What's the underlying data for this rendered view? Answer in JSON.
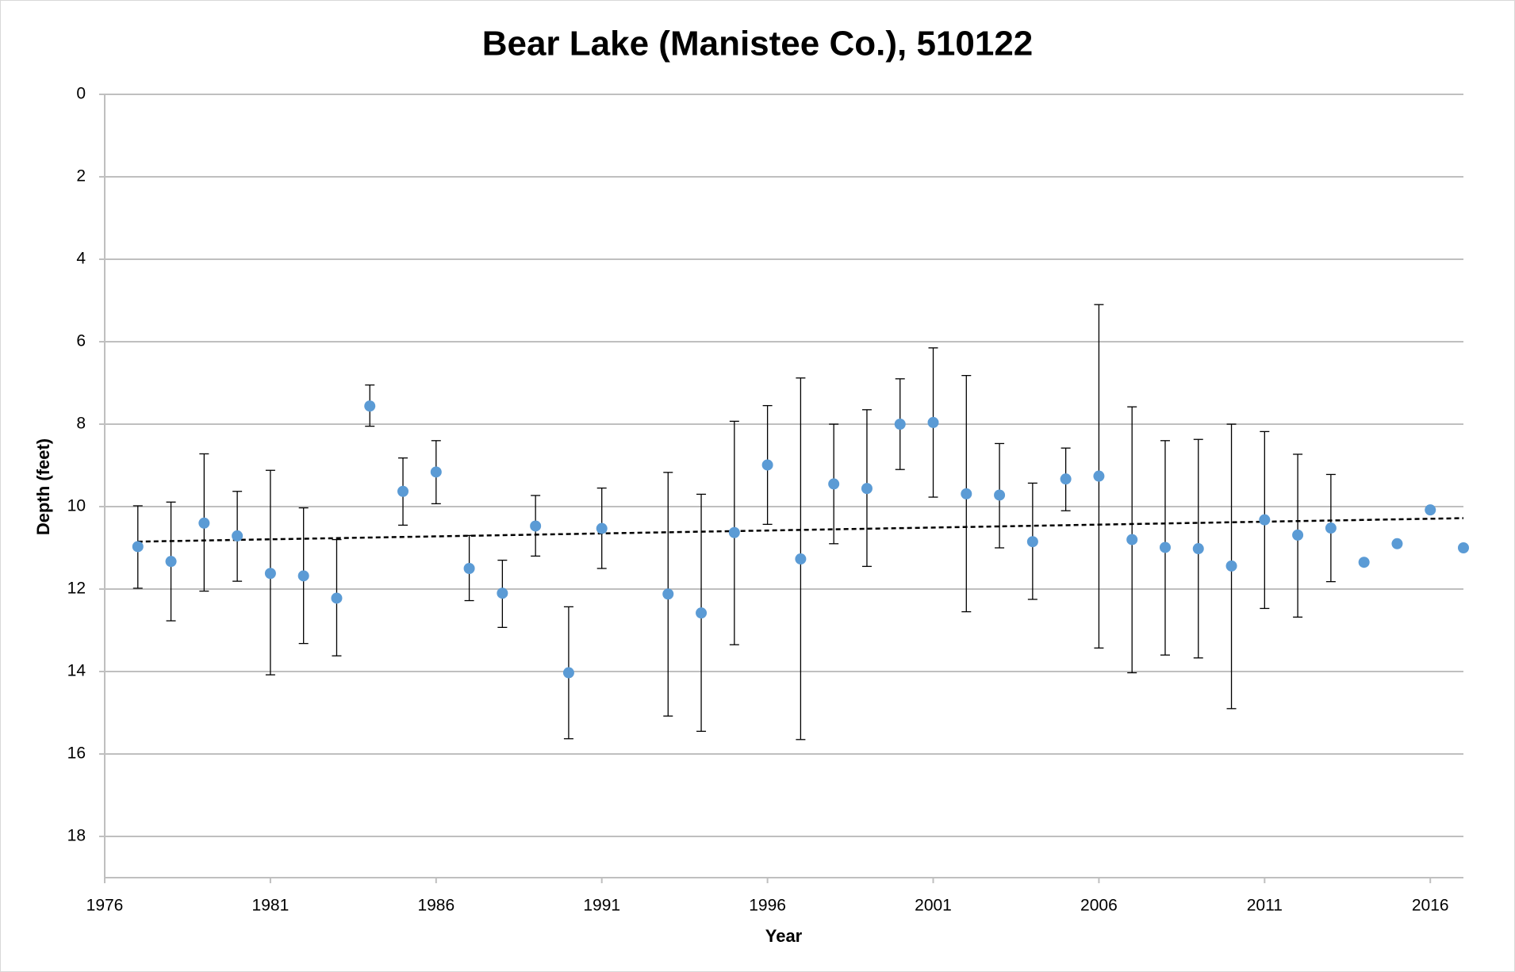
{
  "chart_data": {
    "type": "scatter",
    "title": "Bear Lake (Manistee Co.), 510122",
    "x_label": "Year",
    "y_label": "Depth (feet)",
    "xlim": [
      1976,
      2017
    ],
    "xticks": [
      1976,
      1981,
      1986,
      1991,
      1996,
      2001,
      2006,
      2011,
      2016
    ],
    "ylim": [
      0,
      19
    ],
    "yticks": [
      0,
      2,
      4,
      6,
      8,
      10,
      12,
      14,
      16,
      18
    ],
    "y_inverted": true,
    "grid": true,
    "series": [
      {
        "color": "#5b9bd5",
        "x": [
          1977,
          1978,
          1979,
          1980,
          1981,
          1982,
          1983,
          1984,
          1985,
          1986,
          1987,
          1988,
          1989,
          1990,
          1991,
          1993,
          1994,
          1995,
          1996,
          1997,
          1998,
          1999,
          2000,
          2001,
          2002,
          2003,
          2004,
          2005,
          2006,
          2007,
          2008,
          2009,
          2010,
          2011,
          2012,
          2013,
          2014,
          2015,
          2016,
          2017
        ],
        "values": [
          10.97,
          11.33,
          10.4,
          10.71,
          11.62,
          11.68,
          12.22,
          7.56,
          9.63,
          9.16,
          11.5,
          12.1,
          10.47,
          14.03,
          10.53,
          12.12,
          12.58,
          10.63,
          8.99,
          11.27,
          9.45,
          9.56,
          8.0,
          7.96,
          9.69,
          9.72,
          10.85,
          9.33,
          9.26,
          10.8,
          10.99,
          11.02,
          11.44,
          10.32,
          10.69,
          10.52,
          11.35,
          10.9,
          10.08,
          11.0
        ],
        "lows": [
          9.98,
          9.89,
          8.72,
          9.63,
          9.12,
          10.03,
          10.8,
          7.05,
          8.82,
          8.4,
          10.7,
          11.3,
          9.73,
          12.43,
          9.55,
          9.17,
          9.7,
          7.93,
          7.55,
          6.88,
          8.0,
          7.65,
          6.9,
          6.15,
          6.82,
          8.47,
          9.43,
          8.58,
          5.1,
          7.58,
          8.4,
          8.37,
          8.0,
          8.18,
          8.73,
          9.22,
          null,
          null,
          null,
          null
        ],
        "highs": [
          11.98,
          12.77,
          12.05,
          11.81,
          14.08,
          13.32,
          13.62,
          8.05,
          10.45,
          9.93,
          12.28,
          12.93,
          11.2,
          15.63,
          11.5,
          15.08,
          15.45,
          13.35,
          10.43,
          15.65,
          10.9,
          11.45,
          9.1,
          9.77,
          12.55,
          11.0,
          12.25,
          10.1,
          13.43,
          14.03,
          13.6,
          13.67,
          14.9,
          12.47,
          12.68,
          11.82,
          null,
          null,
          null,
          null
        ]
      }
    ],
    "trendline": {
      "x": [
        1977,
        2017
      ],
      "values": [
        10.85,
        10.28
      ],
      "color": "#000000"
    }
  }
}
